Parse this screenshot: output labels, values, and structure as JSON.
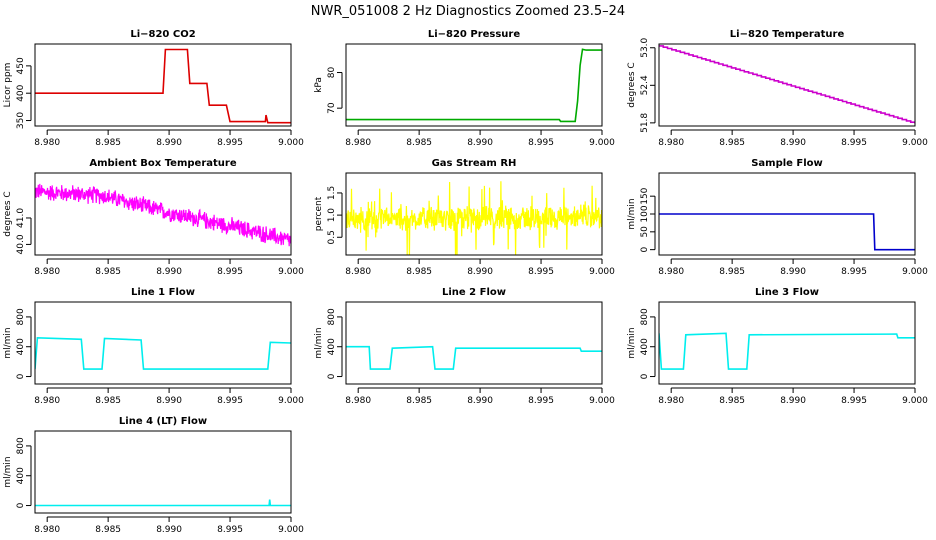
{
  "figure_title": "NWR_051008  2 Hz Diagnostics Zoomed 23.5–24",
  "chart_data": [
    {
      "id": "co2",
      "type": "line",
      "title": "Li−820 CO2",
      "ylabel": "Licor ppm",
      "color": "#dd0000",
      "style": "line",
      "xlim": [
        8.979,
        9.0
      ],
      "xticks": [
        8.98,
        8.985,
        8.99,
        8.995,
        9.0
      ],
      "xtick_labels": [
        "8.980",
        "8.985",
        "8.990",
        "8.995",
        "9.000"
      ],
      "ylim": [
        340,
        490
      ],
      "yticks": [
        350,
        400,
        450
      ],
      "ytick_labels": [
        "350",
        "400",
        "450"
      ],
      "series": [
        {
          "name": "CO2",
          "x": [
            8.979,
            8.9895,
            8.9897,
            8.9915,
            8.9917,
            8.9931,
            8.9933,
            8.9947,
            8.995,
            8.9979,
            8.99795,
            8.9981,
            9.0
          ],
          "y": [
            400,
            400,
            480,
            480,
            418,
            418,
            378,
            378,
            348,
            348,
            360,
            346,
            346
          ]
        }
      ]
    },
    {
      "id": "pressure",
      "type": "line",
      "title": "Li−820 Pressure",
      "ylabel": "kPa",
      "color": "#00aa00",
      "style": "line",
      "xlim": [
        8.979,
        9.0
      ],
      "xticks": [
        8.98,
        8.985,
        8.99,
        8.995,
        9.0
      ],
      "xtick_labels": [
        "8.980",
        "8.985",
        "8.990",
        "8.995",
        "9.000"
      ],
      "ylim": [
        65,
        88
      ],
      "yticks": [
        70,
        80
      ],
      "ytick_labels": [
        "70",
        "80"
      ],
      "series": [
        {
          "name": "Pressure",
          "x": [
            8.979,
            8.9965,
            8.9966,
            8.9978,
            8.998,
            8.9982,
            8.9984,
            8.9987,
            9.0
          ],
          "y": [
            66.8,
            66.8,
            66.3,
            66.3,
            72,
            82,
            86.5,
            86.3,
            86.3
          ]
        }
      ]
    },
    {
      "id": "licor_temp",
      "type": "line",
      "title": "Li−820 Temperature",
      "ylabel": "degrees C",
      "color": "#cc00cc",
      "style": "stairs",
      "xlim": [
        8.979,
        9.0
      ],
      "xticks": [
        8.98,
        8.985,
        8.99,
        8.995,
        9.0
      ],
      "xtick_labels": [
        "8.980",
        "8.985",
        "8.990",
        "8.995",
        "9.000"
      ],
      "ylim": [
        51.75,
        53.06
      ],
      "yticks": [
        51.8,
        52.4,
        53.0
      ],
      "ytick_labels": [
        "51.8",
        "52.4",
        "53.0"
      ],
      "series": [
        {
          "name": "Temperature",
          "x": [
            8.979,
            9.0
          ],
          "y": [
            53.03,
            51.79
          ]
        }
      ]
    },
    {
      "id": "box_temp",
      "type": "line",
      "title": "Ambient Box Temperature",
      "ylabel": "degrees C",
      "color": "#ff00ff",
      "style": "noisy",
      "noise_amp": 0.55,
      "xlim": [
        8.979,
        9.0
      ],
      "xticks": [
        8.98,
        8.985,
        8.99,
        8.995,
        9.0
      ],
      "xtick_labels": [
        "8.980",
        "8.985",
        "8.990",
        "8.995",
        "9.000"
      ],
      "ylim": [
        39.6,
        42.7
      ],
      "yticks": [
        40.0,
        41.0
      ],
      "ytick_labels": [
        "40.0",
        "41.0"
      ],
      "series": [
        {
          "name": "Box temperature",
          "x": [
            8.979,
            8.9845,
            8.99,
            8.9945,
            9.0
          ],
          "y": [
            42.0,
            41.85,
            41.2,
            40.75,
            40.15
          ]
        }
      ]
    },
    {
      "id": "rh",
      "type": "line",
      "title": "Gas Stream RH",
      "ylabel": "percent",
      "color": "#ffff00",
      "style": "noisy",
      "noise_amp": 0.45,
      "xlim": [
        8.979,
        9.0
      ],
      "xticks": [
        8.98,
        8.985,
        8.99,
        8.995,
        9.0
      ],
      "xtick_labels": [
        "8.980",
        "8.985",
        "8.990",
        "8.995",
        "9.000"
      ],
      "ylim": [
        0.1,
        1.95
      ],
      "yticks": [
        0.5,
        1.0,
        1.5
      ],
      "ytick_labels": [
        "0.5",
        "1.0",
        "1.5"
      ],
      "series": [
        {
          "name": "RH",
          "x": [
            8.979,
            9.0
          ],
          "y": [
            0.9,
            0.95
          ]
        }
      ]
    },
    {
      "id": "sample_flow",
      "type": "line",
      "title": "Sample Flow",
      "ylabel": "ml/min",
      "color": "#0000cc",
      "style": "line",
      "xlim": [
        8.979,
        9.0
      ],
      "xticks": [
        8.98,
        8.985,
        8.99,
        8.995,
        9.0
      ],
      "xtick_labels": [
        "8.980",
        "8.985",
        "8.990",
        "8.995",
        "9.000"
      ],
      "ylim": [
        -15,
        215
      ],
      "yticks": [
        0,
        50,
        100,
        150
      ],
      "ytick_labels": [
        "0",
        "50",
        "100",
        "150"
      ],
      "series": [
        {
          "name": "Sample flow",
          "x": [
            8.979,
            8.9966,
            8.9967,
            9.0
          ],
          "y": [
            100,
            100,
            0,
            0
          ]
        }
      ]
    },
    {
      "id": "line1",
      "type": "line",
      "title": "Line 1 Flow",
      "ylabel": "ml/min",
      "color": "#00eeee",
      "style": "line",
      "xlim": [
        8.979,
        9.0
      ],
      "xticks": [
        8.98,
        8.985,
        8.99,
        8.995,
        9.0
      ],
      "xtick_labels": [
        "8.980",
        "8.985",
        "8.990",
        "8.995",
        "9.000"
      ],
      "ylim": [
        -100,
        1000
      ],
      "yticks": [
        0,
        400,
        800
      ],
      "ytick_labels": [
        "0",
        "400",
        "800"
      ],
      "series": [
        {
          "name": "Line 1",
          "x": [
            8.979,
            8.9792,
            8.9828,
            8.983,
            8.9845,
            8.9847,
            8.9877,
            8.9879,
            8.9981,
            8.9983,
            9.0
          ],
          "y": [
            100,
            520,
            500,
            100,
            100,
            510,
            490,
            100,
            100,
            460,
            450
          ]
        }
      ]
    },
    {
      "id": "line2",
      "type": "line",
      "title": "Line 2 Flow",
      "ylabel": "ml/min",
      "color": "#00eeee",
      "style": "line",
      "xlim": [
        8.979,
        9.0
      ],
      "xticks": [
        8.98,
        8.985,
        8.99,
        8.995,
        9.0
      ],
      "xtick_labels": [
        "8.980",
        "8.985",
        "8.990",
        "8.995",
        "9.000"
      ],
      "ylim": [
        -100,
        1000
      ],
      "yticks": [
        0,
        400,
        800
      ],
      "ytick_labels": [
        "0",
        "400",
        "800"
      ],
      "series": [
        {
          "name": "Line 2",
          "x": [
            8.979,
            8.9809,
            8.981,
            8.9826,
            8.9828,
            8.9861,
            8.9863,
            8.9878,
            8.988,
            8.9982,
            8.9983,
            9.0
          ],
          "y": [
            400,
            400,
            100,
            100,
            380,
            400,
            100,
            100,
            380,
            380,
            340,
            340
          ]
        }
      ]
    },
    {
      "id": "line3",
      "type": "line",
      "title": "Line 3 Flow",
      "ylabel": "ml/min",
      "color": "#00eeee",
      "style": "line",
      "xlim": [
        8.979,
        9.0
      ],
      "xticks": [
        8.98,
        8.985,
        8.99,
        8.995,
        9.0
      ],
      "xtick_labels": [
        "8.980",
        "8.985",
        "8.990",
        "8.995",
        "9.000"
      ],
      "ylim": [
        -100,
        1000
      ],
      "yticks": [
        0,
        400,
        800
      ],
      "ytick_labels": [
        "0",
        "400",
        "800"
      ],
      "series": [
        {
          "name": "Line 3",
          "x": [
            8.979,
            8.9792,
            8.9794,
            8.981,
            8.9812,
            8.9845,
            8.9847,
            8.9862,
            8.9864,
            8.9985,
            8.9986,
            9.0
          ],
          "y": [
            580,
            100,
            100,
            100,
            560,
            580,
            100,
            100,
            560,
            570,
            520,
            520
          ]
        }
      ]
    },
    {
      "id": "line4",
      "type": "line",
      "title": "Line 4 (LT) Flow",
      "ylabel": "ml/min",
      "color": "#00eeee",
      "style": "line",
      "xlim": [
        8.979,
        9.0
      ],
      "xticks": [
        8.98,
        8.985,
        8.99,
        8.995,
        9.0
      ],
      "xtick_labels": [
        "8.980",
        "8.985",
        "8.990",
        "8.995",
        "9.000"
      ],
      "ylim": [
        -100,
        1000
      ],
      "yticks": [
        0,
        400,
        800
      ],
      "ytick_labels": [
        "0",
        "400",
        "800"
      ],
      "series": [
        {
          "name": "Line 4",
          "x": [
            8.979,
            8.9982,
            8.99825,
            8.9983,
            8.9984,
            9.0
          ],
          "y": [
            0,
            0,
            80,
            0,
            0,
            0
          ]
        }
      ]
    }
  ]
}
